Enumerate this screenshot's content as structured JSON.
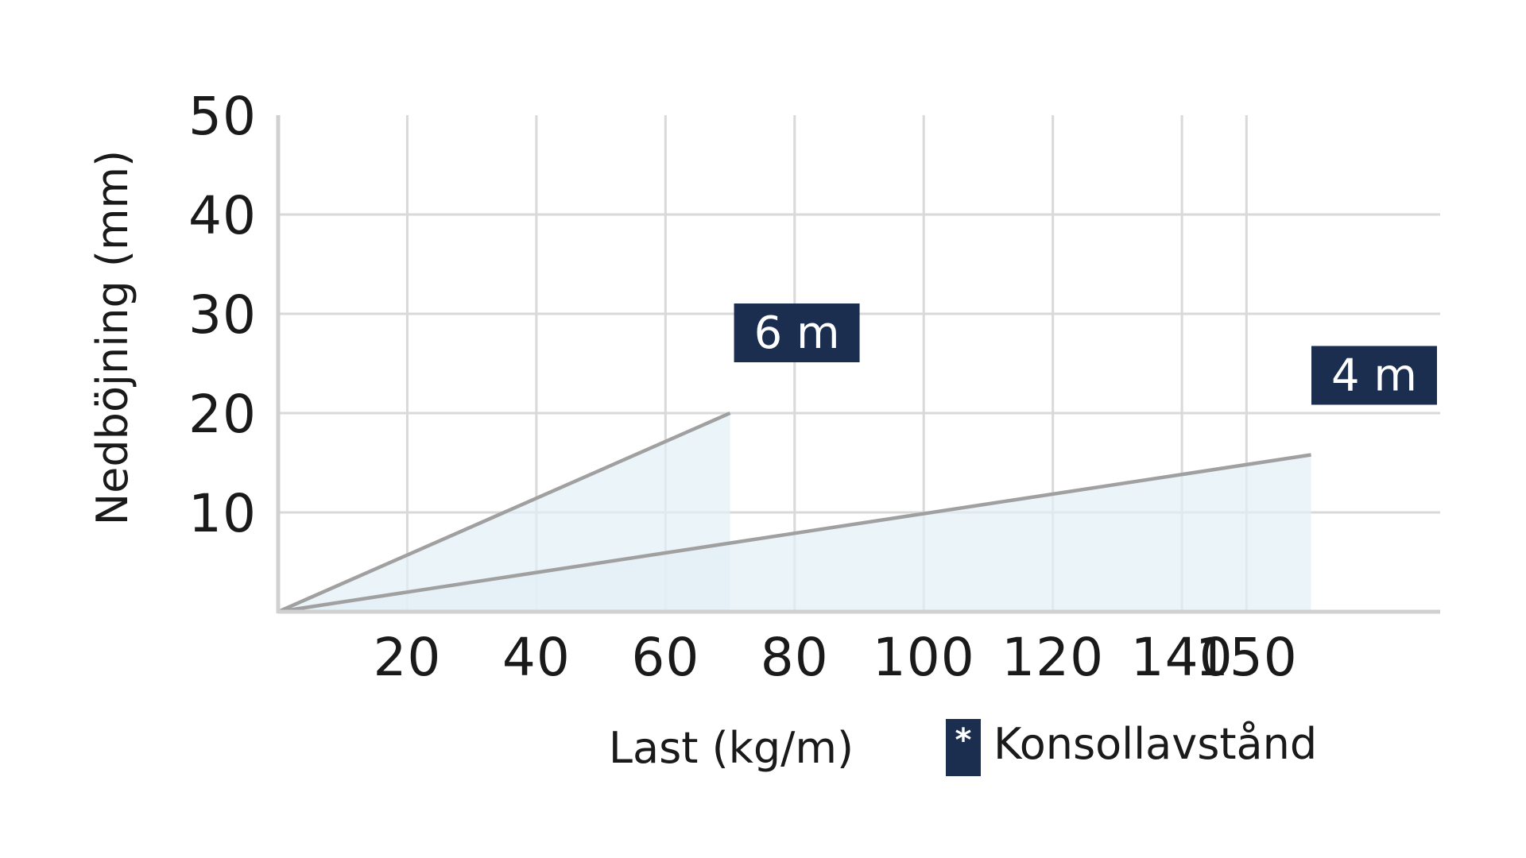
{
  "chart_data": {
    "type": "area",
    "xlabel": "Last (kg/m)",
    "ylabel": "Nedböjning (mm)",
    "x_ticks": [
      20,
      40,
      60,
      80,
      100,
      120,
      140,
      150
    ],
    "y_ticks": [
      10,
      20,
      30,
      40,
      50
    ],
    "xlim": [
      0,
      180
    ],
    "ylim": [
      0,
      50
    ],
    "grid": true,
    "series": [
      {
        "name": "6 m",
        "x": [
          0,
          70
        ],
        "y": [
          0,
          20
        ]
      },
      {
        "name": "4 m",
        "x": [
          0,
          160
        ],
        "y": [
          0,
          15.8
        ]
      }
    ],
    "legend": {
      "symbol": "*",
      "label": "Konsollavstånd",
      "placement": "bottom-right"
    },
    "colors": {
      "line": "#a0a0a0",
      "fill": "#e3f0f7",
      "tag": "#1b2e50",
      "grid": "#d9d9d9",
      "axis": "#d0d0d0"
    }
  }
}
